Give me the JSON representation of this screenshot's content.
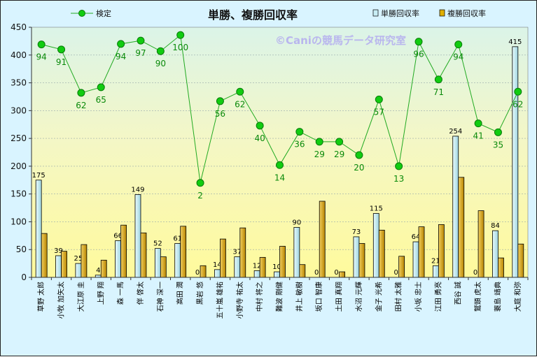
{
  "chart_data": {
    "type": "bar",
    "title": "単勝、複勝回収率",
    "watermark": "©Caniの競馬データ研究室",
    "ylim": [
      0,
      450
    ],
    "yticks": [
      0,
      50,
      100,
      150,
      200,
      250,
      300,
      350,
      400,
      450
    ],
    "categories": [
      "草野 太郎",
      "小牧 加矢太",
      "大江原 圭",
      "上野 翔",
      "森 一馬",
      "伴 啓太",
      "石神 深一",
      "高田 潤",
      "黒岩 悠",
      "五十嵐 雄祐",
      "小野寺 祐太",
      "中村 将之",
      "難波 剛健",
      "井上 敏樹",
      "坂口 智康",
      "土田 真翔",
      "水沼 元輝",
      "金子 光希",
      "田村 太雅",
      "小坂 忠士",
      "江田 勇亮",
      "西谷 誠",
      "鷲頭 虎太",
      "蓑島 靖典",
      "大庭 和弥"
    ],
    "series": [
      {
        "name": "単勝回収率",
        "color": "#c8eef5",
        "values": [
          175,
          39,
          25,
          4,
          66,
          149,
          52,
          61,
          0,
          14,
          37,
          12,
          10,
          90,
          0,
          0,
          73,
          115,
          0,
          64,
          21,
          254,
          0,
          84,
          415
        ]
      },
      {
        "name": "複勝回収率",
        "color": "#e0b000",
        "values": [
          79,
          47,
          59,
          31,
          94,
          80,
          37,
          92,
          21,
          69,
          89,
          36,
          56,
          23,
          137,
          10,
          61,
          85,
          38,
          91,
          95,
          180,
          120,
          35,
          60
        ]
      },
      {
        "name": "検定",
        "color": "#22aa22",
        "values": [
          94,
          91,
          62,
          65,
          94,
          97,
          90,
          100,
          2,
          56,
          62,
          40,
          14,
          36,
          29,
          29,
          20,
          57,
          13,
          96,
          71,
          94,
          41,
          35,
          62
        ],
        "y_positions": [
          419,
          410,
          332,
          342,
          420,
          426,
          407,
          436,
          170,
          317,
          334,
          273,
          202,
          262,
          244,
          244,
          220,
          320,
          200,
          424,
          356,
          419,
          277,
          261,
          334
        ]
      }
    ],
    "legend": {
      "position": "top",
      "items": [
        "検定",
        "単勝回収率",
        "複勝回収率"
      ]
    }
  }
}
